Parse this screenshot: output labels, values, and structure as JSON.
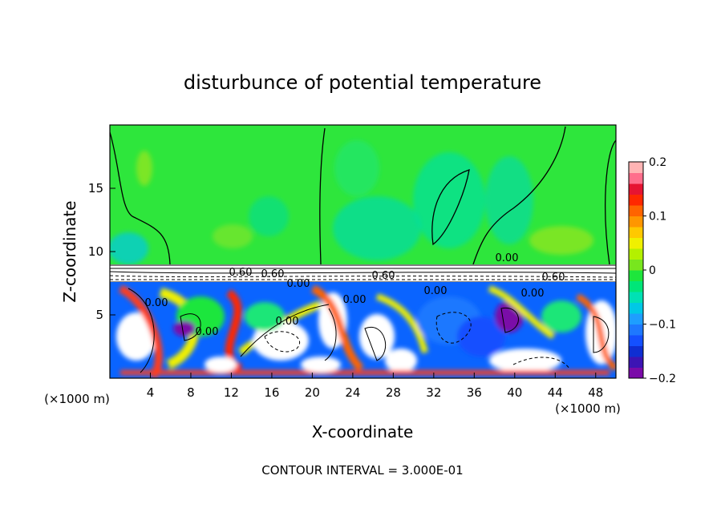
{
  "chart_data": {
    "type": "heatmap",
    "title": "disturbunce of potential temperature",
    "xlabel": "X-coordinate",
    "ylabel": "Z-coordinate",
    "x_unit": "(×1000 m)",
    "x_unit_right": "(×1000 m)",
    "footer": "CONTOUR INTERVAL = 3.000E-01",
    "xlim": [
      0,
      50
    ],
    "ylim": [
      0,
      20
    ],
    "x_ticks": [
      4,
      8,
      12,
      16,
      20,
      24,
      28,
      32,
      36,
      40,
      44,
      48
    ],
    "y_ticks": [
      5,
      10,
      15
    ],
    "colorbar": {
      "min": -0.2,
      "max": 0.2,
      "ticks": [
        0.2,
        0.1,
        0,
        -0.1,
        -0.2
      ],
      "tick_labels": [
        "0.2",
        "0.1",
        "0",
        "−0.1",
        "−0.2"
      ],
      "colors": [
        "#7a0aa8",
        "#3c14b4",
        "#0f2ed2",
        "#1450ff",
        "#1e78ff",
        "#1e9eff",
        "#00c8e6",
        "#00e1b4",
        "#00e678",
        "#1ee63c",
        "#78e61e",
        "#b4f000",
        "#f0f000",
        "#ffc800",
        "#ff9600",
        "#ff6400",
        "#ff2800",
        "#e61432",
        "#ff6e8c",
        "#ffb4b4"
      ]
    },
    "contour_labels": [
      "0.00",
      "0.00",
      "0.00",
      "0.00",
      "0.00",
      "0.00",
      "0.00",
      "0.00",
      "0.60",
      "0.60",
      "0.60",
      "0.60"
    ],
    "colors": {
      "upper_field": "#2ee63c",
      "lower_field": "#0a64ff",
      "frame": "#000000"
    }
  }
}
